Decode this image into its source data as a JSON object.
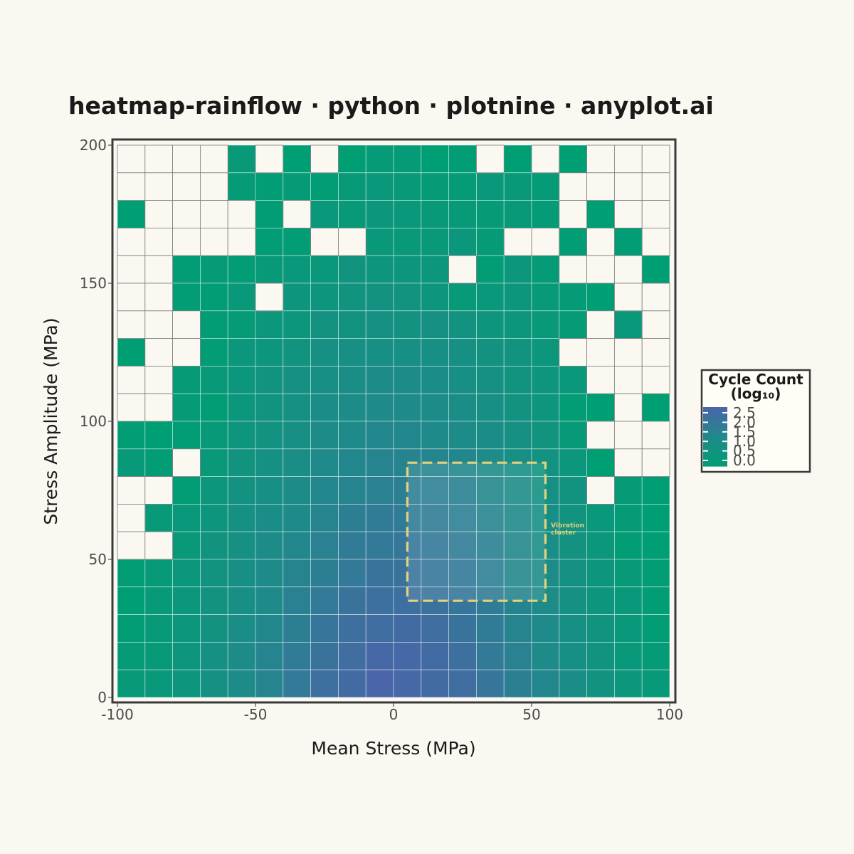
{
  "chart_data": {
    "type": "heatmap",
    "title": "heatmap-rainflow · python · plotnine · anyplot.ai",
    "xlabel": "Mean Stress (MPa)",
    "ylabel": "Stress Amplitude (MPa)",
    "xlim": [
      -100,
      100
    ],
    "ylim": [
      0,
      200
    ],
    "x_bin_width": 10,
    "y_bin_width": 10,
    "x_ticks": [
      -100,
      -50,
      0,
      50,
      100
    ],
    "x_tick_labels": [
      "-100",
      "-50",
      "0",
      "50",
      "100"
    ],
    "y_ticks": [
      0,
      50,
      100,
      150,
      200
    ],
    "y_tick_labels": [
      "0",
      "50",
      "100",
      "150",
      "200"
    ],
    "legend": {
      "title_line1": "Cycle Count",
      "title_line2": "(log₁₀)",
      "placement": "right",
      "values": [
        2.5,
        2.0,
        1.5,
        1.0,
        0.5,
        0.0
      ],
      "labels": [
        "2.5",
        "2.0",
        "1.5",
        "1.0",
        "0.5",
        "0.0"
      ]
    },
    "color_scale": {
      "low": "#009E73",
      "mid": "#1F8A8A",
      "high": "#4A65A8",
      "domain": [
        0,
        2.6
      ]
    },
    "grid": true,
    "empty_cell_color": "#FAF8F1",
    "x_bins_lower_edges": [
      -100,
      -90,
      -80,
      -70,
      -60,
      -50,
      -40,
      -30,
      -20,
      -10,
      0,
      10,
      20,
      30,
      40,
      50,
      60,
      70,
      80,
      90
    ],
    "y_bins_lower_edges_top_to_bottom": [
      190,
      180,
      170,
      160,
      150,
      140,
      130,
      120,
      110,
      100,
      90,
      80,
      70,
      60,
      50,
      40,
      30,
      20,
      10,
      0
    ],
    "values_log10": [
      [
        null,
        null,
        null,
        null,
        0.3,
        null,
        0.0,
        null,
        0.0,
        0.2,
        0.2,
        0.0,
        0.1,
        null,
        0.0,
        null,
        0.0,
        null,
        null,
        null
      ],
      [
        null,
        null,
        null,
        null,
        0.2,
        0.1,
        0.2,
        0.1,
        0.3,
        0.4,
        0.3,
        0.2,
        0.2,
        0.4,
        0.3,
        0.2,
        null,
        null,
        null,
        null
      ],
      [
        0.0,
        null,
        null,
        null,
        null,
        0.1,
        null,
        0.4,
        0.3,
        0.5,
        0.4,
        0.3,
        0.3,
        0.2,
        0.3,
        0.2,
        null,
        0.0,
        null,
        null
      ],
      [
        null,
        null,
        null,
        null,
        null,
        0.1,
        0.1,
        null,
        null,
        0.4,
        0.4,
        0.4,
        0.5,
        0.2,
        null,
        null,
        0.1,
        null,
        0.1,
        null
      ],
      [
        null,
        null,
        0.1,
        0.2,
        0.1,
        0.3,
        0.4,
        0.4,
        0.7,
        0.6,
        0.6,
        0.5,
        null,
        0.1,
        0.5,
        0.2,
        null,
        null,
        null,
        0.0
      ],
      [
        null,
        null,
        0.1,
        0.1,
        0.4,
        null,
        0.6,
        0.6,
        0.7,
        0.8,
        0.7,
        0.6,
        0.3,
        0.4,
        0.5,
        0.3,
        0.2,
        0.0,
        null,
        null
      ],
      [
        null,
        null,
        null,
        0.1,
        0.2,
        0.5,
        0.5,
        0.8,
        0.8,
        0.9,
        0.8,
        0.9,
        0.8,
        0.6,
        0.5,
        0.4,
        0.2,
        null,
        0.4,
        null
      ],
      [
        0.0,
        null,
        null,
        0.1,
        0.5,
        0.6,
        0.7,
        0.9,
        1.0,
        1.0,
        1.0,
        1.0,
        0.9,
        0.8,
        0.7,
        0.5,
        null,
        null,
        null,
        null
      ],
      [
        null,
        null,
        0.2,
        0.3,
        0.5,
        0.7,
        0.9,
        1.0,
        1.1,
        1.2,
        1.2,
        1.1,
        1.0,
        0.9,
        0.7,
        0.6,
        0.4,
        null,
        null,
        null
      ],
      [
        null,
        null,
        0.2,
        0.1,
        0.5,
        0.7,
        0.9,
        1.1,
        1.2,
        1.3,
        1.3,
        1.2,
        1.1,
        1.0,
        0.8,
        0.6,
        0.1,
        0.0,
        null,
        0.0
      ],
      [
        0.1,
        0.0,
        0.1,
        0.3,
        0.6,
        0.8,
        1.0,
        1.2,
        1.3,
        1.4,
        1.4,
        1.3,
        1.2,
        1.1,
        0.9,
        0.7,
        0.3,
        null,
        null,
        null
      ],
      [
        0.3,
        0.1,
        null,
        0.4,
        0.7,
        0.9,
        1.1,
        1.3,
        1.4,
        1.5,
        1.5,
        1.5,
        1.4,
        1.2,
        1.0,
        0.8,
        0.5,
        0.0,
        null,
        null
      ],
      [
        null,
        null,
        0.1,
        0.5,
        0.8,
        1.0,
        1.2,
        1.4,
        1.5,
        1.6,
        1.7,
        1.7,
        1.6,
        1.4,
        1.2,
        0.9,
        0.7,
        null,
        0.2,
        0.0
      ],
      [
        null,
        0.3,
        0.4,
        0.6,
        0.9,
        1.1,
        1.3,
        1.5,
        1.7,
        1.8,
        1.8,
        1.8,
        1.7,
        1.5,
        1.3,
        1.0,
        0.7,
        0.4,
        0.2,
        0.0
      ],
      [
        null,
        null,
        0.4,
        0.7,
        0.9,
        1.2,
        1.4,
        1.6,
        1.8,
        1.9,
        2.0,
        1.9,
        1.8,
        1.6,
        1.4,
        1.1,
        0.8,
        0.5,
        0.1,
        0.0
      ],
      [
        0.1,
        0.3,
        0.5,
        0.7,
        1.0,
        1.3,
        1.5,
        1.7,
        1.9,
        2.1,
        2.1,
        2.0,
        1.9,
        1.7,
        1.4,
        1.2,
        0.9,
        0.6,
        0.3,
        0.1
      ],
      [
        0.0,
        0.3,
        0.5,
        0.8,
        1.0,
        1.3,
        1.6,
        1.9,
        2.1,
        2.2,
        2.2,
        2.1,
        2.0,
        1.8,
        1.5,
        1.2,
        0.9,
        0.6,
        0.4,
        0.1
      ],
      [
        0.1,
        0.3,
        0.5,
        0.8,
        1.1,
        1.4,
        1.7,
        2.0,
        2.2,
        2.3,
        2.4,
        2.3,
        2.1,
        1.8,
        1.5,
        1.3,
        1.0,
        0.7,
        0.4,
        0.1
      ],
      [
        0.2,
        0.3,
        0.6,
        0.9,
        1.2,
        1.5,
        1.8,
        2.1,
        2.3,
        2.5,
        2.5,
        2.4,
        2.2,
        1.9,
        1.6,
        1.3,
        1.0,
        0.7,
        0.4,
        0.2
      ],
      [
        0.3,
        0.4,
        0.6,
        0.9,
        1.2,
        1.5,
        1.9,
        2.2,
        2.4,
        2.6,
        2.5,
        2.4,
        2.3,
        2.0,
        1.7,
        1.4,
        1.1,
        0.8,
        0.5,
        0.3
      ]
    ],
    "annotations": [
      {
        "type": "rect",
        "x_range": [
          5,
          55
        ],
        "y_range": [
          35,
          85
        ],
        "style": "dashed",
        "color": "#E6D27A",
        "label_line1": "Vibration",
        "label_line2": "cluster",
        "label_x": 57,
        "label_y": 60
      }
    ]
  }
}
